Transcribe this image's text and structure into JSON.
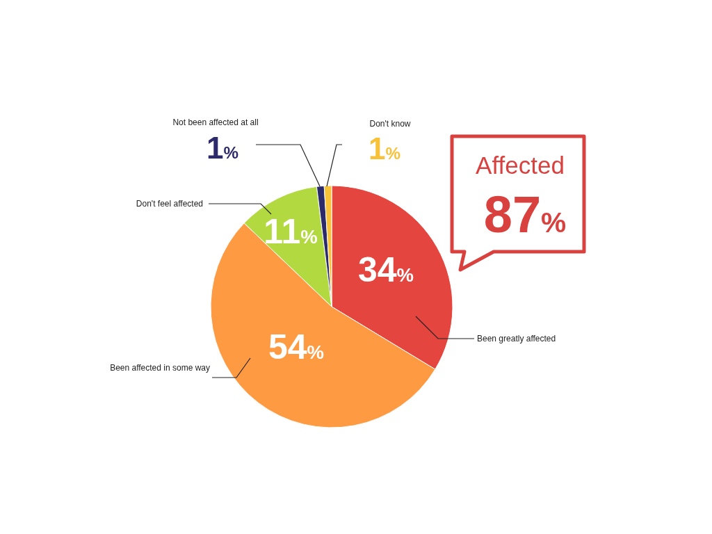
{
  "chart_data": {
    "type": "pie",
    "categories": [
      "Been greatly affected",
      "Been affected in some  way",
      "Don't feel affected",
      "Not been affected at all",
      "Don't know"
    ],
    "values": [
      34,
      54,
      11,
      1,
      1
    ],
    "colors": [
      "#e5453f",
      "#fd9a42",
      "#b3d940",
      "#2d2a6b",
      "#f8c13a"
    ],
    "value_labels": [
      "34%",
      "54%",
      "11%",
      "1%",
      "1%"
    ],
    "annotations": [
      "Affected",
      "87%"
    ]
  }
}
